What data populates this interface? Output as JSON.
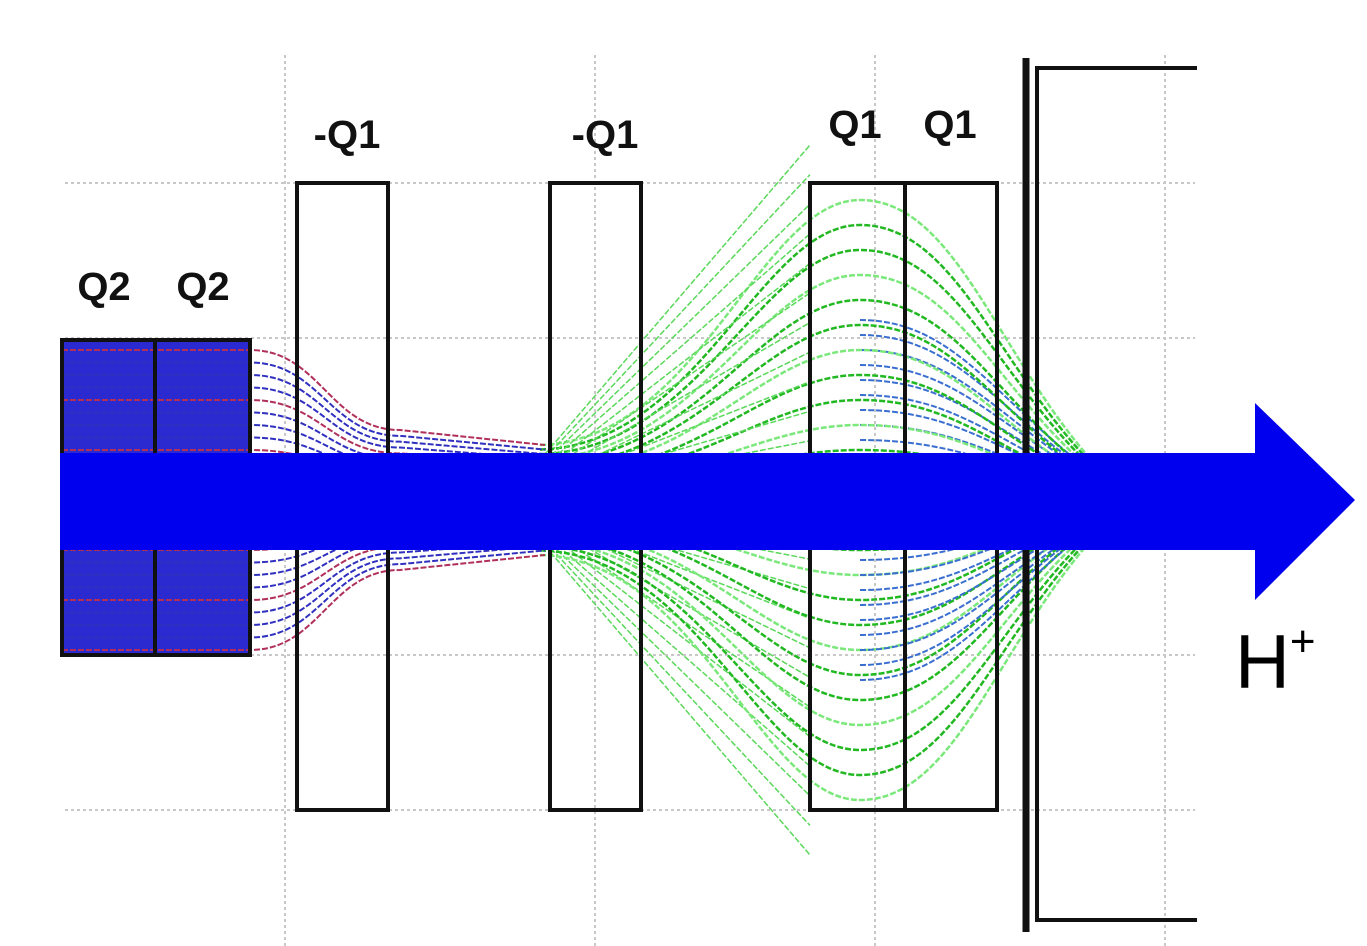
{
  "elements": [
    {
      "label": "Q2"
    },
    {
      "label": "Q2"
    },
    {
      "label": "-Q1"
    },
    {
      "label": "-Q1"
    },
    {
      "label": "Q1"
    },
    {
      "label": "Q1"
    }
  ],
  "beam": {
    "label": {
      "base": "H",
      "superscript": "+"
    }
  }
}
